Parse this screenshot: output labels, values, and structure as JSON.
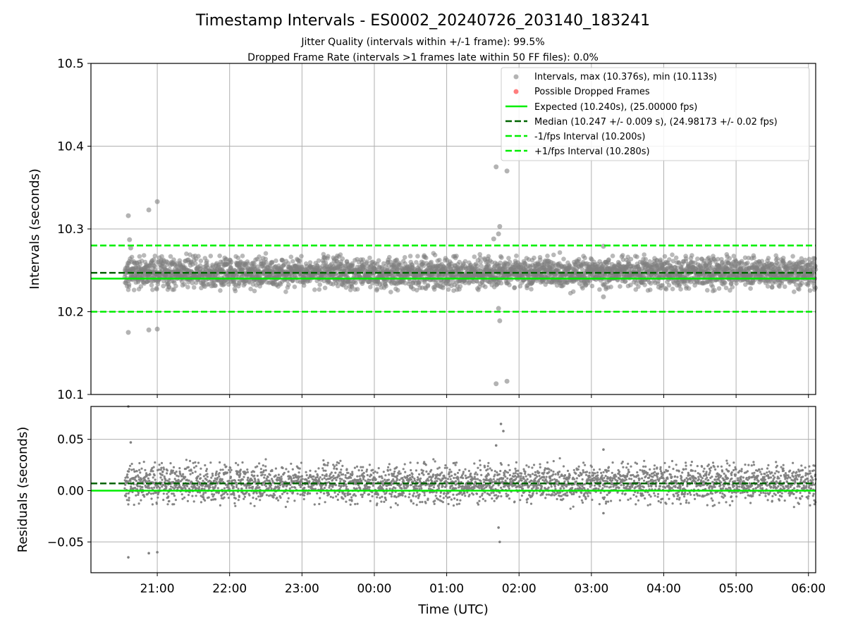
{
  "figure": {
    "title": "Timestamp Intervals - ES0002_20240726_203140_183241",
    "subtitle_jitter": "Jitter Quality (intervals within +/-1 frame): 99.5%",
    "subtitle_dropped": "Dropped Frame Rate (intervals >1 frames late within 50 FF files): 0.0%"
  },
  "colors": {
    "points": "#808080",
    "dropped": "#ff6666",
    "expected": "#00ee00",
    "median": "#006400",
    "fps_bounds": "#00ee00",
    "grid": "#b0b0b0"
  },
  "chart_data": [
    {
      "type": "scatter",
      "ylabel": "Intervals (seconds)",
      "ylim": [
        10.1,
        10.5
      ],
      "yticks": [
        "10.1",
        "10.2",
        "10.3",
        "10.4",
        "10.5"
      ],
      "xlim": [
        "20:05",
        "06:06"
      ],
      "x_tick_positions": [
        "21:00",
        "22:00",
        "23:00",
        "00:00",
        "01:00",
        "02:00",
        "03:00",
        "04:00",
        "05:00",
        "06:00"
      ],
      "grid": true,
      "legend_placement": "top-right",
      "legend": [
        {
          "label": "Intervals, max (10.376s), min (10.113s)",
          "marker": "gray-dot"
        },
        {
          "label": "Possible Dropped Frames",
          "marker": "red-dot"
        },
        {
          "label": "Expected (10.240s), (25.00000 fps)",
          "marker": "green-line"
        },
        {
          "label": "Median (10.247 +/- 0.009 s), (24.98173 +/- 0.02 fps)",
          "marker": "dark-green-dashed"
        },
        {
          "label": "-1/fps Interval (10.200s)",
          "marker": "green-dashed"
        },
        {
          "label": "+1/fps Interval (10.280s)",
          "marker": "green-dashed"
        }
      ],
      "reference_lines": {
        "expected": 10.24,
        "median": 10.247,
        "minus_fps": 10.2,
        "plus_fps": 10.28
      },
      "series": [
        {
          "name": "Intervals, max (10.376s), min (10.113s)",
          "x_range": [
            "20:33",
            "06:06"
          ],
          "center": 10.247,
          "spread": 0.009,
          "count": 3450
        },
        {
          "name": "Possible Dropped Frames",
          "x": [],
          "y": []
        }
      ],
      "outliers": [
        {
          "x": "20:36",
          "y": 10.316
        },
        {
          "x": "20:37",
          "y": 10.287
        },
        {
          "x": "20:38",
          "y": 10.277
        },
        {
          "x": "20:36",
          "y": 10.175
        },
        {
          "x": "20:53",
          "y": 10.323
        },
        {
          "x": "20:53",
          "y": 10.178
        },
        {
          "x": "21:00",
          "y": 10.333
        },
        {
          "x": "21:00",
          "y": 10.179
        },
        {
          "x": "01:41",
          "y": 10.375
        },
        {
          "x": "01:50",
          "y": 10.37
        },
        {
          "x": "01:44",
          "y": 10.303
        },
        {
          "x": "01:43",
          "y": 10.294
        },
        {
          "x": "01:39",
          "y": 10.288
        },
        {
          "x": "01:43",
          "y": 10.204
        },
        {
          "x": "01:44",
          "y": 10.189
        },
        {
          "x": "01:41",
          "y": 10.113
        },
        {
          "x": "01:50",
          "y": 10.116
        },
        {
          "x": "03:10",
          "y": 10.279
        },
        {
          "x": "03:10",
          "y": 10.218
        }
      ]
    },
    {
      "type": "scatter",
      "xlabel": "Time (UTC)",
      "ylabel": "Residuals (seconds)",
      "ylim": [
        -0.08,
        0.082
      ],
      "yticks": [
        "−0.05",
        "0.00",
        "0.05"
      ],
      "xticks": [
        "21:00",
        "22:00",
        "23:00",
        "00:00",
        "01:00",
        "02:00",
        "03:00",
        "04:00",
        "05:00",
        "06:00"
      ],
      "grid": true,
      "reference_lines": {
        "zero": 0.0,
        "median_residual": 0.007
      },
      "series": [
        {
          "name": "Residuals",
          "x_range": [
            "20:33",
            "06:06"
          ],
          "center": 0.007,
          "spread": 0.009,
          "count": 3450
        }
      ],
      "outliers": [
        {
          "x": "20:36",
          "y": 0.082
        },
        {
          "x": "20:38",
          "y": 0.047
        },
        {
          "x": "20:36",
          "y": -0.065
        },
        {
          "x": "20:53",
          "y": -0.061
        },
        {
          "x": "21:00",
          "y": -0.06
        },
        {
          "x": "01:41",
          "y": 0.044
        },
        {
          "x": "01:45",
          "y": 0.065
        },
        {
          "x": "01:47",
          "y": 0.058
        },
        {
          "x": "01:43",
          "y": -0.036
        },
        {
          "x": "01:44",
          "y": -0.05
        },
        {
          "x": "03:10",
          "y": 0.04
        },
        {
          "x": "03:10",
          "y": -0.022
        }
      ]
    }
  ]
}
